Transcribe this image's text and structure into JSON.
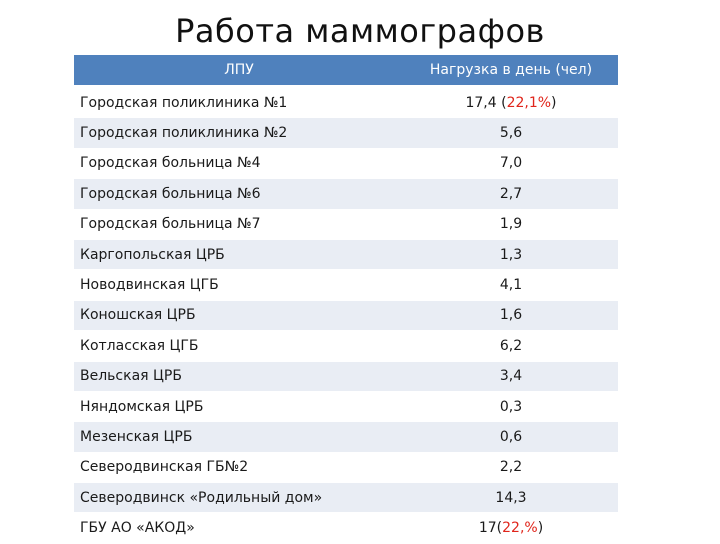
{
  "title": "Работа маммографов",
  "table": {
    "headers": [
      "ЛПУ",
      "Нагрузка в день (чел)"
    ],
    "rows": [
      {
        "name": "Городская поликлиника №1",
        "value": "17,4",
        "note_open": " (",
        "note": "22,1%",
        "note_close": ")"
      },
      {
        "name": "Городская поликлиника №2",
        "value": "5,6"
      },
      {
        "name": "Городская больница №4",
        "value": "7,0"
      },
      {
        "name": "Городская больница №6",
        "value": "2,7"
      },
      {
        "name": "Городская больница №7",
        "value": "1,9"
      },
      {
        "name": "Каргопольская ЦРБ",
        "value": "1,3"
      },
      {
        "name": "Новодвинская ЦГБ",
        "value": "4,1"
      },
      {
        "name": "Коношская ЦРБ",
        "value": "1,6"
      },
      {
        "name": "Котласская ЦГБ",
        "value": "6,2"
      },
      {
        "name": "Вельская ЦРБ",
        "value": "3,4"
      },
      {
        "name": "Няндомская ЦРБ",
        "value": "0,3"
      },
      {
        "name": "Мезенская ЦРБ",
        "value": "0,6"
      },
      {
        "name": "Северодвинская ГБ№2",
        "value": "2,2"
      },
      {
        "name": "Северодвинск «Родильный дом»",
        "value": "14,3"
      },
      {
        "name": "ГБУ АО «АКОД»",
        "value": "17",
        "note_open": "(",
        "note": "22,%",
        "note_close": ")"
      }
    ]
  },
  "colors": {
    "header_bg": "#4f81bd",
    "stripe": "#e9edf4",
    "highlight": "#e0251b"
  }
}
